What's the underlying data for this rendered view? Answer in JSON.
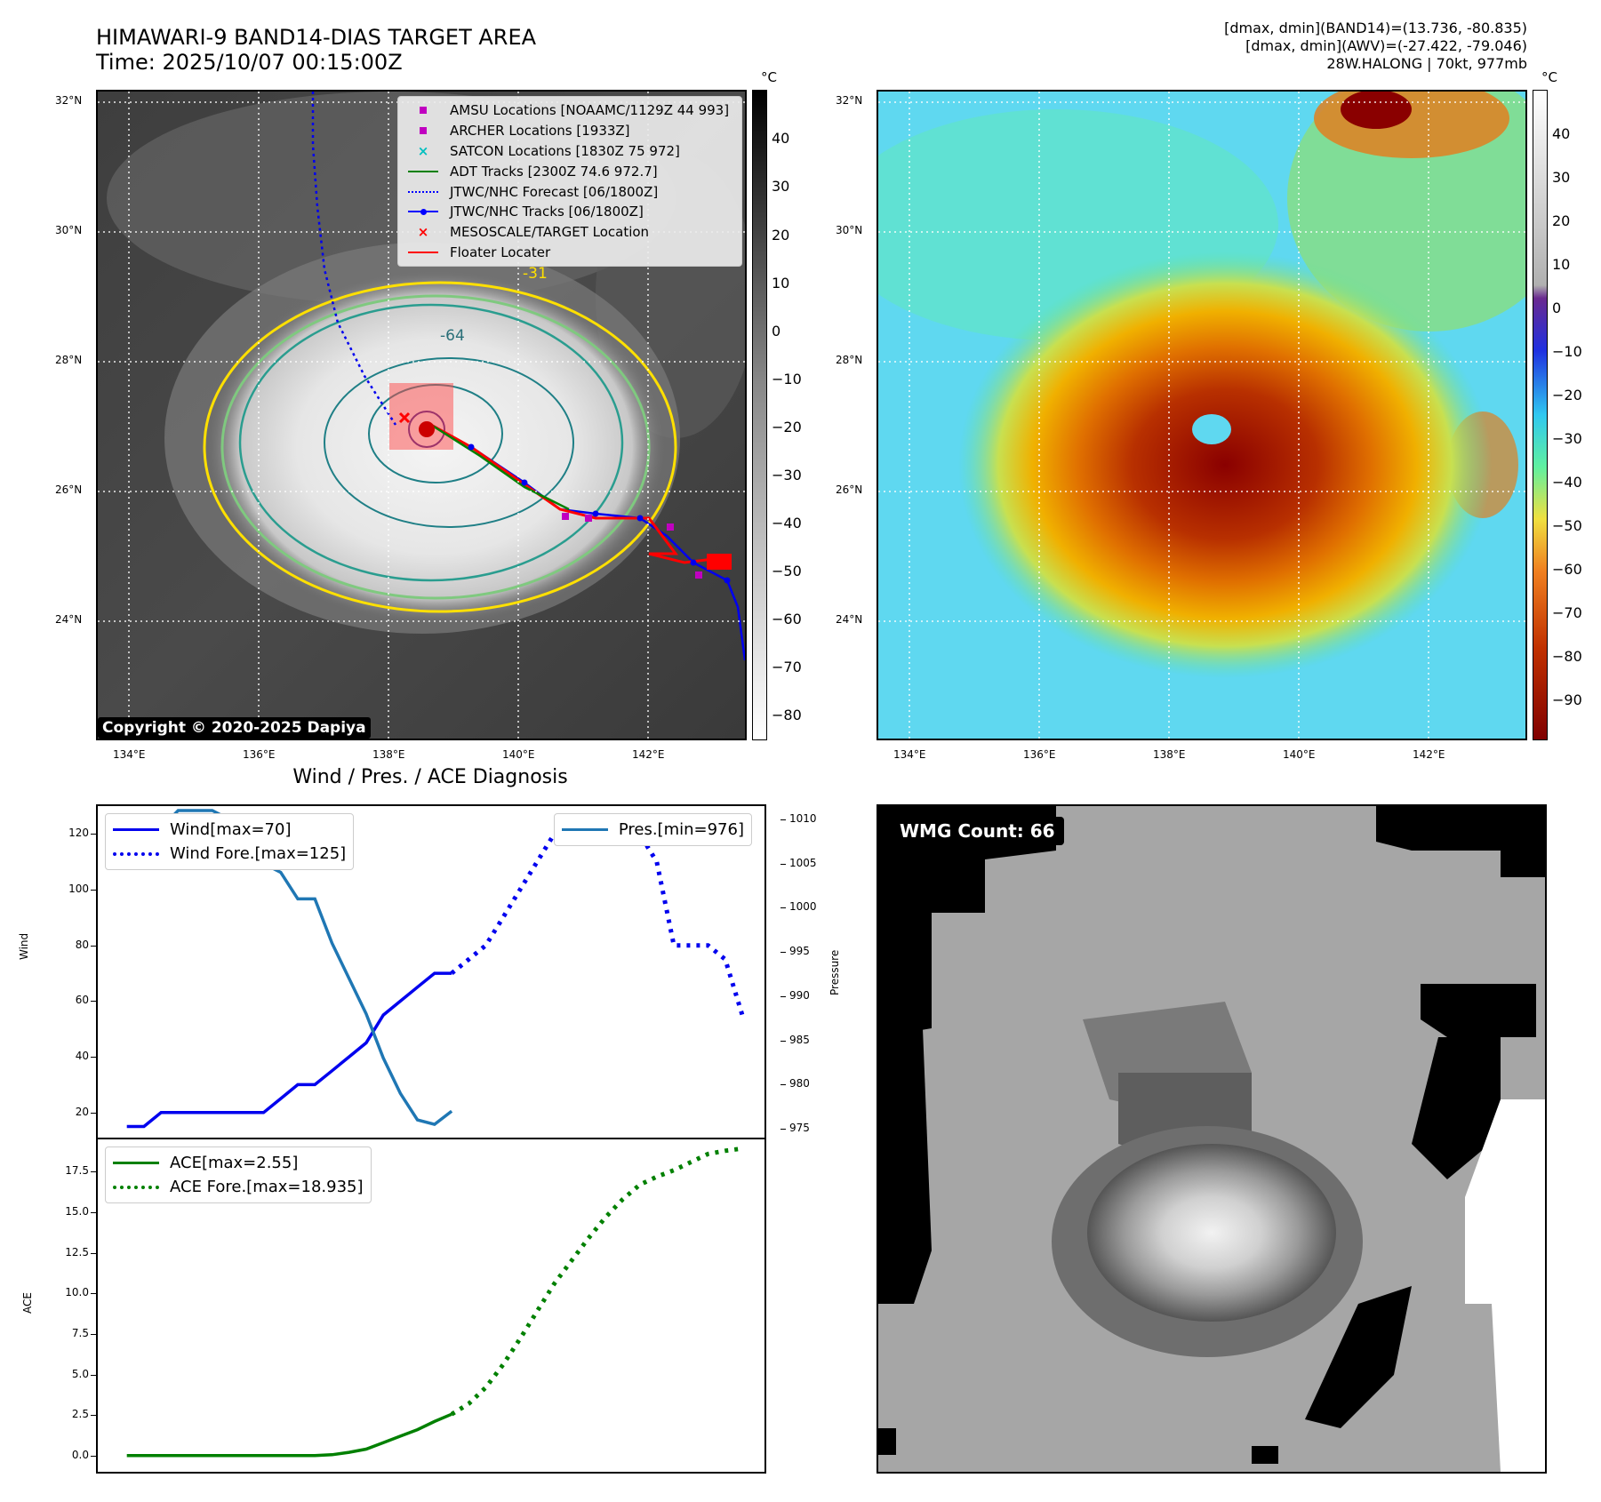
{
  "header": {
    "title_line1": "HIMAWARI-9 BAND14-DIAS TARGET AREA",
    "title_line2": "Time: 2025/10/07 00:15:00Z",
    "info_line1": "[dmax, dmin](BAND14)=(13.736, -80.835)",
    "info_line2": "[dmax, dmin](AWV)=(-27.422, -79.046)",
    "info_line3": "28W.HALONG | 70kt, 977mb"
  },
  "map": {
    "lat_labels": [
      "32°N",
      "30°N",
      "28°N",
      "26°N",
      "24°N"
    ],
    "lon_labels": [
      "134°E",
      "136°E",
      "138°E",
      "140°E",
      "142°E"
    ],
    "copyright": "Copyright © 2020-2025 Dapiya",
    "contour_labels": [
      "-64",
      "-31"
    ],
    "legend": [
      {
        "label": "AMSU Locations [NOAAMC/1129Z 44 993]",
        "marker": "square",
        "color": "#c000c0"
      },
      {
        "label": "ARCHER Locations [1933Z]",
        "marker": "square",
        "color": "#c000c0"
      },
      {
        "label": "SATCON Locations [1830Z 75 972]",
        "marker": "x",
        "color": "#00bfbf"
      },
      {
        "label": "ADT Tracks [2300Z 74.6 972.7]",
        "marker": "line",
        "color": "#008000"
      },
      {
        "label": "JTWC/NHC Forecast [06/1800Z]",
        "marker": "dotted",
        "color": "#0000ff"
      },
      {
        "label": "JTWC/NHC Tracks [06/1800Z]",
        "marker": "line-dot",
        "color": "#0000ff"
      },
      {
        "label": "MESOSCALE/TARGET Location",
        "marker": "x",
        "color": "#ff0000"
      },
      {
        "label": "Floater Locater",
        "marker": "line",
        "color": "#ff0000"
      }
    ]
  },
  "colorbar_gray": {
    "unit": "°C",
    "labels": [
      "40",
      "30",
      "20",
      "10",
      "0",
      "−10",
      "−20",
      "−30",
      "−40",
      "−50",
      "−60",
      "−70",
      "−80"
    ]
  },
  "colorbar_color": {
    "unit": "°C",
    "labels": [
      "40",
      "30",
      "20",
      "10",
      "0",
      "−10",
      "−20",
      "−30",
      "−40",
      "−50",
      "−60",
      "−70",
      "−80",
      "−90"
    ]
  },
  "diag": {
    "title": "Wind / Pres. / ACE Diagnosis",
    "wind_ylabel": "Wind",
    "pres_ylabel": "Pressure",
    "ace_ylabel": "ACE",
    "wind_ticks": [
      "120",
      "100",
      "80",
      "60",
      "40",
      "20"
    ],
    "pres_ticks": [
      "1010",
      "1005",
      "1000",
      "995",
      "990",
      "985",
      "980",
      "975"
    ],
    "ace_ticks": [
      "17.5",
      "15.0",
      "12.5",
      "10.0",
      "7.5",
      "5.0",
      "2.5",
      "0.0"
    ],
    "legend_wind": "Wind[max=70]",
    "legend_wind_fore": "Wind Fore.[max=125]",
    "legend_pres": "Pres.[min=976]",
    "legend_ace": "ACE[max=2.55]",
    "legend_ace_fore": "ACE Fore.[max=18.935]"
  },
  "wmg": {
    "badge": "WMG Count: 66"
  },
  "chart_data": [
    {
      "type": "line",
      "title": "Wind / Pres. / ACE Diagnosis",
      "ylabel": "Wind",
      "ylim": [
        11,
        130
      ],
      "y2label": "Pressure",
      "y2lim": [
        974,
        1011.5
      ],
      "series": [
        {
          "name": "Wind[max=70]",
          "axis": "left",
          "style": "solid",
          "color": "#0000ee",
          "x": [
            0,
            1,
            2,
            3,
            4,
            5,
            6,
            7,
            8,
            9,
            10,
            11,
            12,
            13,
            14,
            15,
            16,
            17,
            18,
            19
          ],
          "y": [
            15,
            15,
            20,
            20,
            20,
            20,
            20,
            20,
            20,
            25,
            30,
            30,
            35,
            40,
            45,
            55,
            60,
            65,
            70,
            70
          ]
        },
        {
          "name": "Wind Fore.[max=125]",
          "axis": "left",
          "style": "dotted",
          "color": "#0000ee",
          "x": [
            19,
            20,
            21,
            22,
            23,
            24,
            25,
            26,
            27,
            28,
            29,
            30,
            31,
            32,
            33,
            34,
            35,
            36
          ],
          "y": [
            70,
            75,
            80,
            90,
            100,
            110,
            120,
            125,
            125,
            125,
            125,
            120,
            110,
            80,
            80,
            80,
            75,
            55
          ]
        },
        {
          "name": "Pres.[min=976]",
          "axis": "right",
          "style": "solid",
          "color": "#1f77b4",
          "x": [
            0,
            1,
            2,
            3,
            4,
            5,
            6,
            7,
            8,
            9,
            10,
            11,
            12,
            13,
            14,
            15,
            16,
            17,
            18,
            19
          ],
          "y": [
            1009,
            1009,
            1009,
            1011,
            1011,
            1011,
            1010,
            1007,
            1005,
            1004,
            1001,
            1001,
            996,
            992,
            988,
            983,
            979,
            976,
            975.5,
            977
          ]
        }
      ]
    },
    {
      "type": "line",
      "ylabel": "ACE",
      "ylim": [
        -1,
        19.5
      ],
      "series": [
        {
          "name": "ACE[max=2.55]",
          "style": "solid",
          "color": "#008000",
          "x": [
            0,
            2,
            4,
            6,
            8,
            10,
            11,
            12,
            13,
            14,
            15,
            16,
            17,
            18,
            19
          ],
          "y": [
            0,
            0,
            0,
            0,
            0,
            0,
            0,
            0.05,
            0.2,
            0.4,
            0.8,
            1.2,
            1.6,
            2.1,
            2.55
          ]
        },
        {
          "name": "ACE Fore.[max=18.935]",
          "style": "dotted",
          "color": "#008000",
          "x": [
            19,
            20,
            21,
            22,
            23,
            24,
            25,
            26,
            27,
            28,
            29,
            30,
            31,
            32,
            33,
            34,
            35,
            36
          ],
          "y": [
            2.55,
            3.2,
            4.2,
            5.6,
            7.2,
            8.9,
            10.6,
            12.0,
            13.4,
            14.7,
            15.8,
            16.7,
            17.2,
            17.6,
            18.1,
            18.6,
            18.8,
            18.935
          ]
        }
      ]
    }
  ]
}
